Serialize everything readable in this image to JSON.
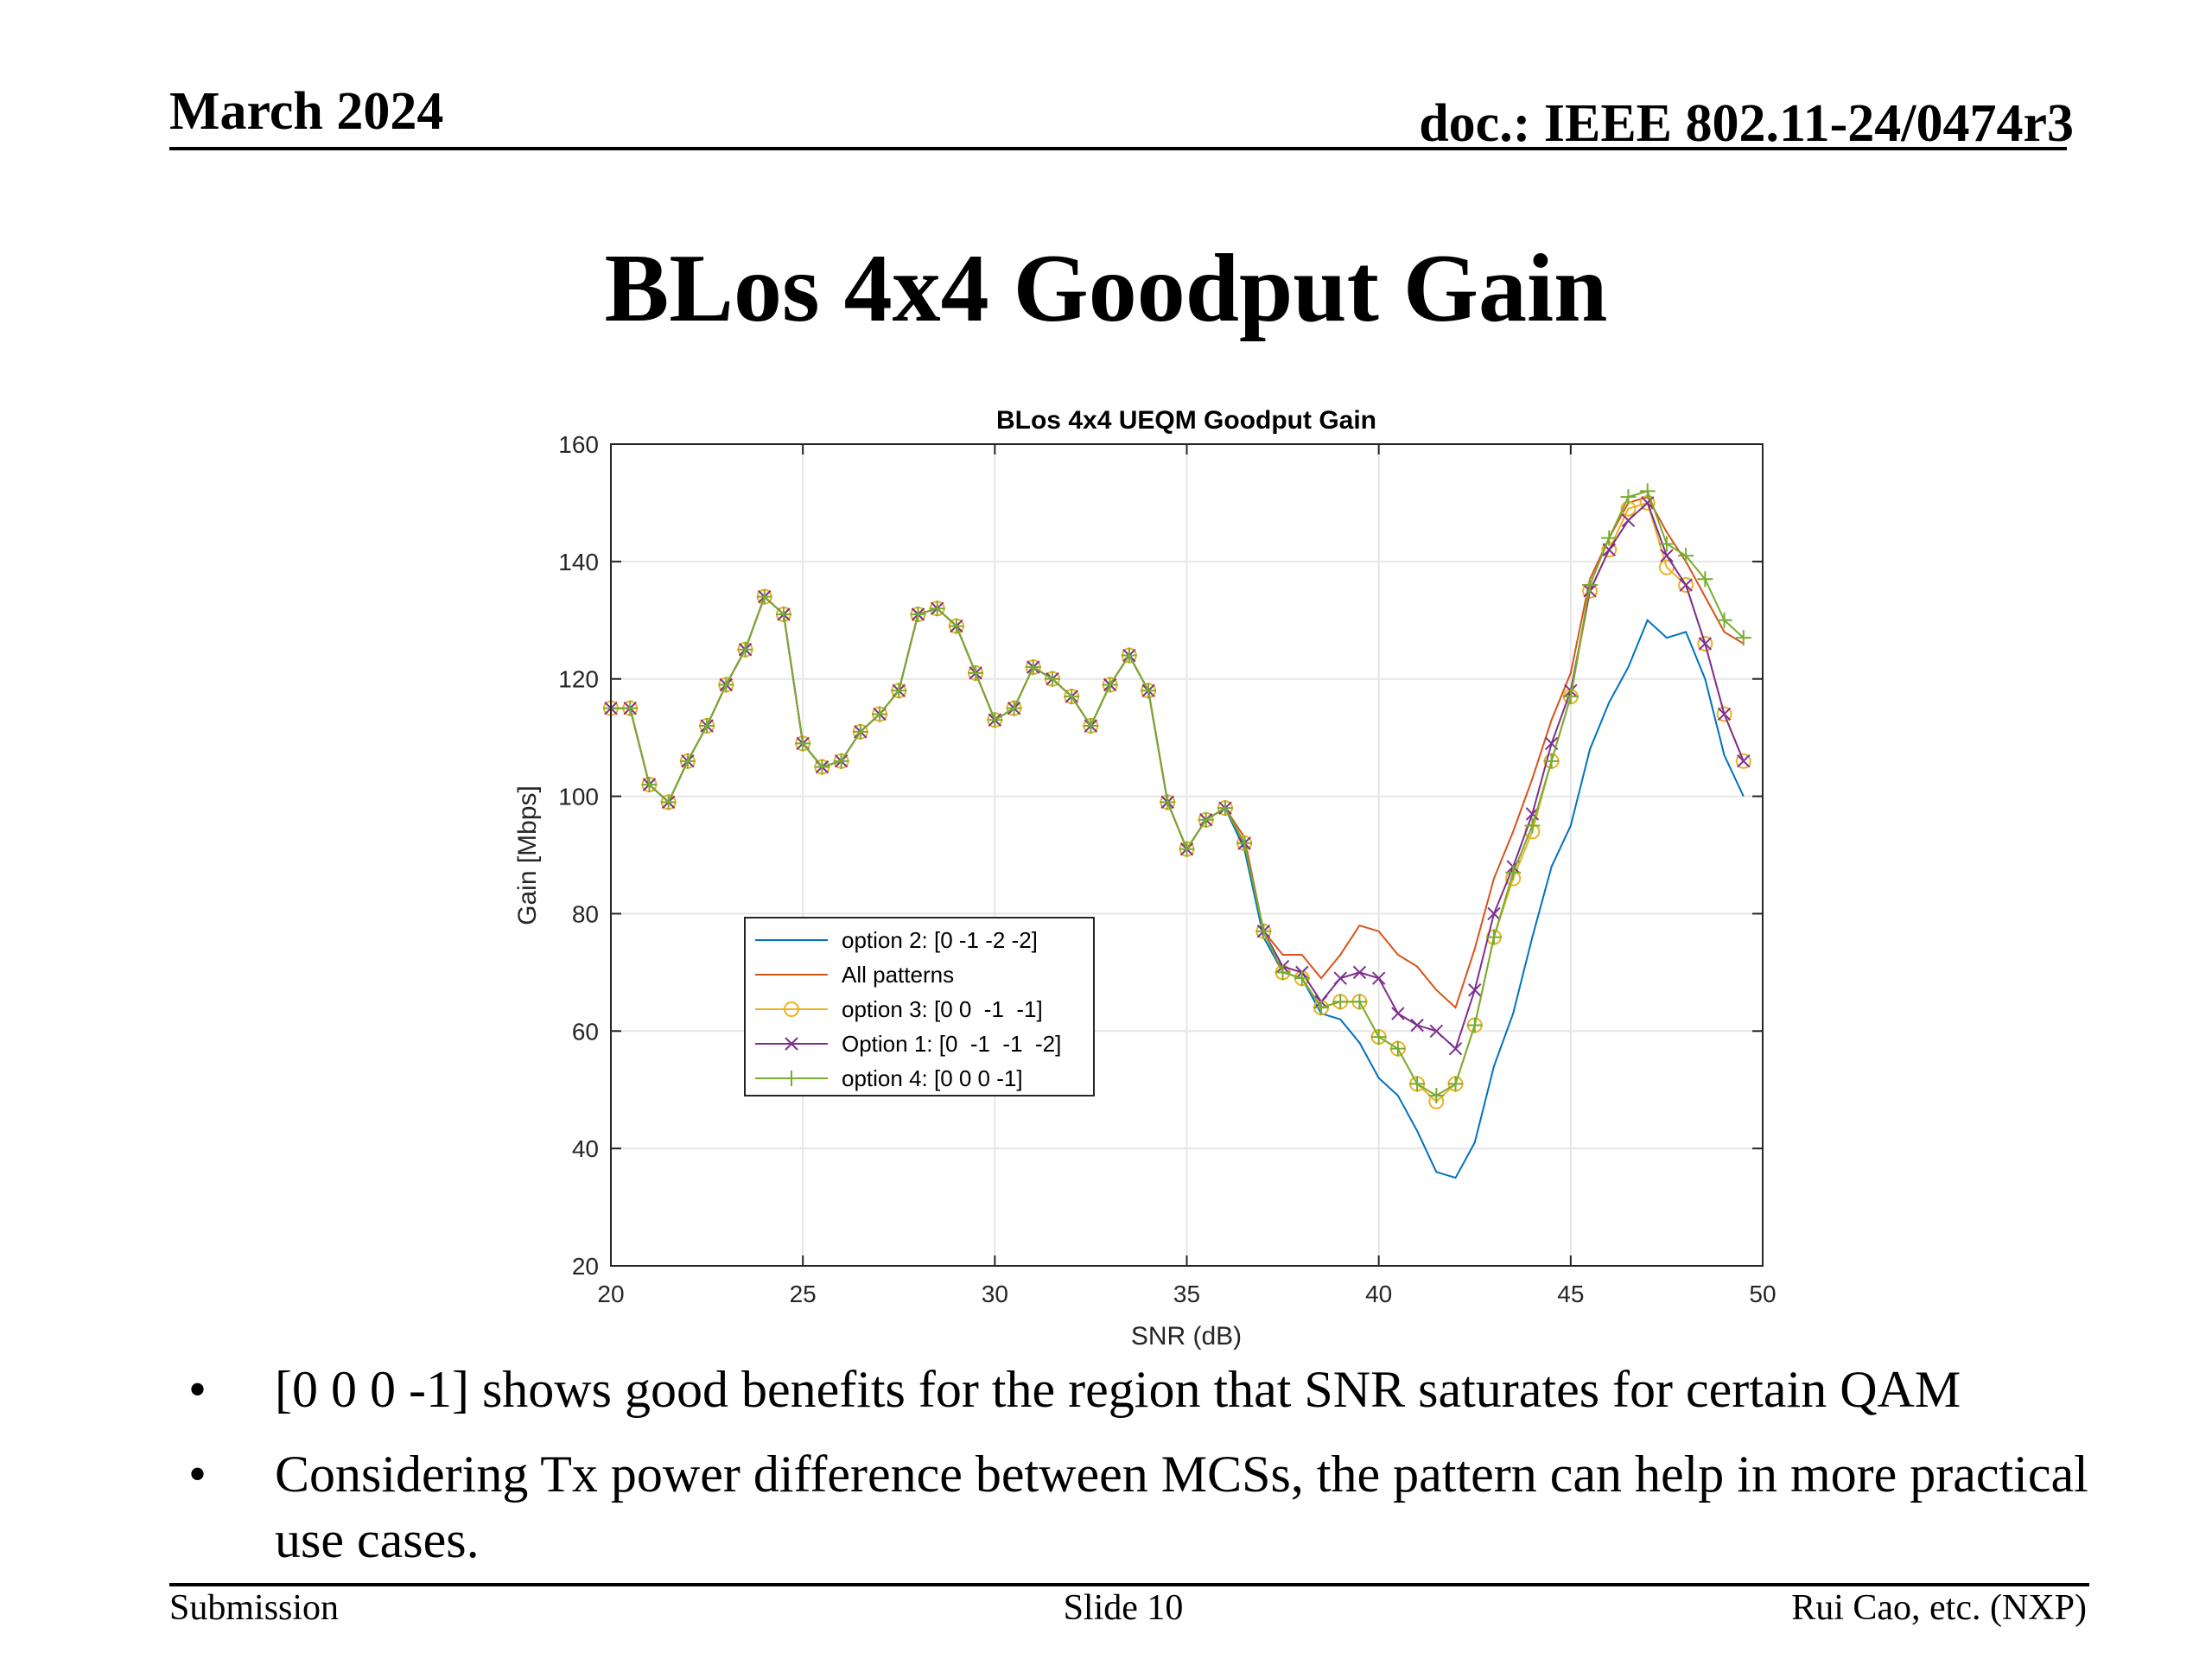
{
  "header": {
    "date": "March 2024",
    "doc": "doc.: IEEE 802.11-24/0474r3"
  },
  "slide_title": "BLos 4x4 Goodput Gain",
  "bullets": [
    "[0 0 0 -1] shows good benefits for the region that SNR saturates for certain QAM",
    "Considering Tx power difference between MCSs, the pattern can help in more practical use cases."
  ],
  "bullet_symbol": "•",
  "footer": {
    "left": "Submission",
    "center": "Slide 10",
    "right": "Rui Cao, etc. (NXP)"
  },
  "chart_data": {
    "type": "line",
    "title": "BLos 4x4 UEQM Goodput Gain",
    "xlabel": "SNR (dB)",
    "ylabel": "Gain [Mbps]",
    "xlim": [
      20,
      50
    ],
    "ylim": [
      20,
      160
    ],
    "xticks": [
      20,
      25,
      30,
      35,
      40,
      45,
      50
    ],
    "yticks": [
      20,
      40,
      60,
      80,
      100,
      120,
      140,
      160
    ],
    "grid": true,
    "legend_position": "lower-left",
    "x": [
      20,
      20.5,
      21,
      21.5,
      22,
      22.5,
      23,
      23.5,
      24,
      24.5,
      25,
      25.5,
      26,
      26.5,
      27,
      27.5,
      28,
      28.5,
      29,
      29.5,
      30,
      30.5,
      31,
      31.5,
      32,
      32.5,
      33,
      33.5,
      34,
      34.5,
      35,
      35.5,
      36,
      36.5,
      37,
      37.5,
      38,
      38.5,
      39,
      39.5,
      40,
      40.5,
      41,
      41.5,
      42,
      42.5,
      43,
      43.5,
      44,
      44.5,
      45,
      45.5,
      46,
      46.5,
      47,
      47.5,
      48,
      48.5,
      49,
      49.5
    ],
    "series": [
      {
        "name": "option 2: [0 -1 -2 -2]",
        "color": "#0072BD",
        "marker": "none",
        "values": [
          115,
          115,
          102,
          99,
          106,
          112,
          119,
          125,
          134,
          131,
          109,
          105,
          106,
          111,
          114,
          118,
          131,
          132,
          129,
          121,
          113,
          115,
          122,
          120,
          117,
          112,
          119,
          124,
          118,
          99,
          91,
          96,
          98,
          91,
          76,
          70,
          69,
          63,
          62,
          58,
          52,
          49,
          43,
          36,
          35,
          41,
          54,
          63,
          76,
          88,
          95,
          108,
          116,
          122,
          130,
          127,
          128,
          120,
          107,
          100
        ]
      },
      {
        "name": "All patterns",
        "color": "#D95319",
        "marker": "none",
        "values": [
          115,
          115,
          102,
          99,
          106,
          112,
          119,
          125,
          134,
          131,
          109,
          105,
          106,
          111,
          114,
          118,
          131,
          132,
          129,
          121,
          113,
          115,
          122,
          120,
          117,
          112,
          119,
          124,
          118,
          99,
          91,
          96,
          98,
          93,
          77,
          73,
          73,
          69,
          73,
          78,
          77,
          73,
          71,
          67,
          64,
          74,
          86,
          94,
          103,
          113,
          121,
          137,
          144,
          150,
          151,
          145,
          140,
          134,
          128,
          126
        ]
      },
      {
        "name": "option 3: [0 0  -1  -1]",
        "color": "#EDB120",
        "marker": "circle",
        "values": [
          115,
          115,
          102,
          99,
          106,
          112,
          119,
          125,
          134,
          131,
          109,
          105,
          106,
          111,
          114,
          118,
          131,
          132,
          129,
          121,
          113,
          115,
          122,
          120,
          117,
          112,
          119,
          124,
          118,
          99,
          91,
          96,
          98,
          92,
          77,
          70,
          69,
          64,
          65,
          65,
          59,
          57,
          51,
          48,
          51,
          61,
          76,
          86,
          94,
          106,
          117,
          135,
          142,
          149,
          150,
          139,
          136,
          126,
          114,
          106
        ]
      },
      {
        "name": "Option 1: [0  -1  -1  -2]",
        "color": "#7E2F8E",
        "marker": "x",
        "values": [
          115,
          115,
          102,
          99,
          106,
          112,
          119,
          125,
          134,
          131,
          109,
          105,
          106,
          111,
          114,
          118,
          131,
          132,
          129,
          121,
          113,
          115,
          122,
          120,
          117,
          112,
          119,
          124,
          118,
          99,
          91,
          96,
          98,
          92,
          77,
          71,
          70,
          65,
          69,
          70,
          69,
          63,
          61,
          60,
          57,
          67,
          80,
          88,
          97,
          109,
          118,
          135,
          142,
          147,
          150,
          141,
          136,
          126,
          114,
          106
        ]
      },
      {
        "name": "option 4: [0 0 0 -1]",
        "color": "#77AC30",
        "marker": "plus",
        "values": [
          115,
          115,
          102,
          99,
          106,
          112,
          119,
          125,
          134,
          131,
          109,
          105,
          106,
          111,
          114,
          118,
          131,
          132,
          129,
          121,
          113,
          115,
          122,
          120,
          117,
          112,
          119,
          124,
          118,
          99,
          91,
          96,
          98,
          92,
          77,
          70,
          69,
          64,
          65,
          65,
          59,
          57,
          51,
          49,
          51,
          61,
          76,
          87,
          95,
          106,
          117,
          136,
          144,
          151,
          152,
          143,
          141,
          137,
          130,
          127
        ]
      }
    ]
  }
}
